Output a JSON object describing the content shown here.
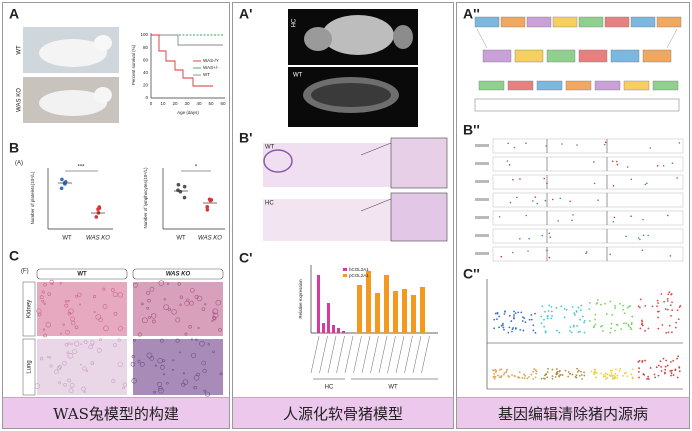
{
  "panels": [
    {
      "caption": "WAS兔模型的构建",
      "label_a": "A",
      "label_b": "B",
      "label_c": "C",
      "photo_labels": [
        "WT",
        "WAS KO"
      ],
      "survival": {
        "y_title": "Percent survival (%)",
        "x_title": "Age (days)",
        "yticks": [
          "100",
          "80",
          "60",
          "40",
          "20",
          "0"
        ],
        "xticks": [
          "0",
          "10",
          "20",
          "30",
          "40",
          "50",
          "60"
        ],
        "legend": [
          "WAS-/Y",
          "WAS+/-",
          "WT"
        ]
      },
      "blood": {
        "tag": "(A)",
        "platelet_title": "Number of platelets(10⁹/L)",
        "lymph_title": "Number of lymphocytes(10⁹/L)",
        "platelet_sig": "***",
        "lymph_sig": "*",
        "groups": [
          "WT",
          "WAS KO"
        ]
      },
      "histology": {
        "tag": "(F)",
        "columns": [
          "WT",
          "WAS KO"
        ],
        "rows": [
          "Kidney",
          "Lung"
        ]
      }
    },
    {
      "caption": "人源化软骨猪模型",
      "label_a": "A'",
      "label_b": "B'",
      "label_c": "C'",
      "xray_labels": [
        "HC",
        "WT"
      ],
      "section_labels": [
        "WT",
        "HC"
      ],
      "expression": {
        "y_title": "Relative expression",
        "legend": [
          "hCOL2A1",
          "pCOL2A1"
        ],
        "groups": [
          "HC",
          "WT"
        ]
      }
    },
    {
      "caption": "基因编辑清除猪内源病",
      "label_a": "A''",
      "label_b": "B''",
      "label_c": "C''"
    }
  ]
}
